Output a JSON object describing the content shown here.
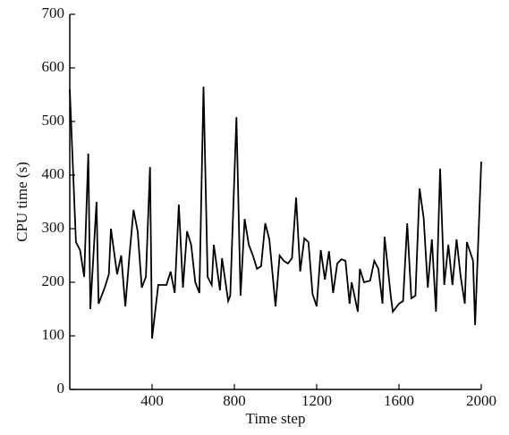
{
  "chart_data": {
    "type": "line",
    "x_label": "Time step",
    "y_label": "CPU time (s)",
    "xlim": [
      0,
      2000
    ],
    "ylim": [
      0,
      700
    ],
    "xticks": [
      400,
      800,
      1200,
      1600,
      2000
    ],
    "yticks": [
      0,
      100,
      200,
      300,
      400,
      500,
      600,
      700
    ],
    "series": [
      {
        "color": "#000000",
        "x": [
          0,
          30,
          50,
          70,
          90,
          100,
          130,
          140,
          170,
          190,
          200,
          230,
          250,
          270,
          290,
          310,
          330,
          350,
          370,
          390,
          400,
          430,
          450,
          470,
          490,
          510,
          530,
          550,
          570,
          590,
          610,
          630,
          650,
          670,
          690,
          700,
          730,
          740,
          770,
          780,
          810,
          830,
          850,
          870,
          890,
          910,
          930,
          950,
          970,
          1000,
          1020,
          1040,
          1060,
          1080,
          1100,
          1120,
          1140,
          1160,
          1180,
          1200,
          1220,
          1240,
          1260,
          1280,
          1300,
          1320,
          1340,
          1360,
          1370,
          1400,
          1410,
          1430,
          1460,
          1480,
          1500,
          1520,
          1530,
          1560,
          1570,
          1600,
          1620,
          1640,
          1660,
          1680,
          1700,
          1720,
          1740,
          1760,
          1780,
          1800,
          1820,
          1840,
          1860,
          1880,
          1900,
          1920,
          1930,
          1960,
          1970,
          2000
        ],
        "values": [
          560,
          275,
          260,
          210,
          440,
          150,
          350,
          160,
          190,
          215,
          300,
          215,
          250,
          155,
          250,
          335,
          295,
          190,
          210,
          415,
          95,
          195,
          195,
          195,
          220,
          180,
          345,
          190,
          295,
          270,
          200,
          180,
          565,
          210,
          195,
          270,
          185,
          245,
          165,
          175,
          508,
          175,
          318,
          270,
          250,
          225,
          230,
          310,
          280,
          155,
          250,
          240,
          235,
          245,
          358,
          220,
          282,
          275,
          178,
          155,
          260,
          205,
          258,
          180,
          235,
          243,
          240,
          160,
          200,
          145,
          225,
          200,
          203,
          240,
          225,
          160,
          285,
          175,
          145,
          160,
          165,
          310,
          170,
          175,
          375,
          320,
          190,
          280,
          145,
          412,
          195,
          270,
          195,
          280,
          210,
          160,
          275,
          240,
          120,
          425
        ]
      }
    ]
  }
}
